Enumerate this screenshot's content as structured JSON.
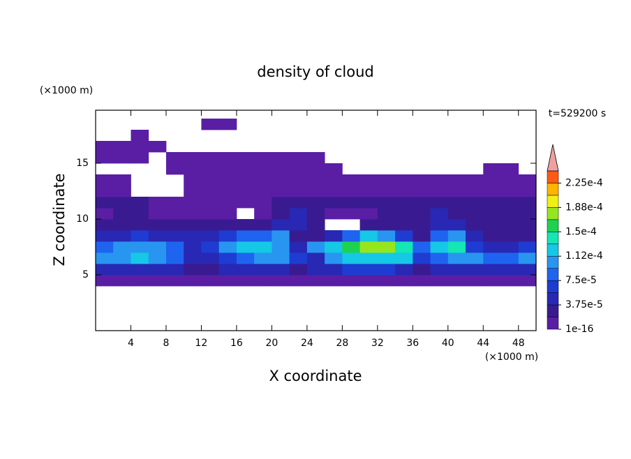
{
  "chart_data": {
    "type": "contour",
    "title": "density of cloud",
    "annotation": "t=529200 s",
    "x_label": "X coordinate",
    "y_label": "Z coordinate",
    "x_unit": "(×1000 m)",
    "y_unit": "(×1000 m)",
    "xlim": [
      0,
      50
    ],
    "ylim": [
      0,
      19.75
    ],
    "xticks": [
      4,
      8,
      12,
      16,
      20,
      24,
      28,
      32,
      36,
      40,
      44,
      48
    ],
    "yticks": [
      5,
      10,
      15
    ],
    "x": [
      1,
      3,
      5,
      7,
      9,
      11,
      13,
      15,
      17,
      19,
      21,
      23,
      25,
      27,
      29,
      31,
      33,
      35,
      37,
      39,
      41,
      43,
      45,
      47,
      49
    ],
    "y": [
      4.5,
      5.5,
      6.5,
      7.5,
      8.5,
      9.5,
      10.5,
      11.5,
      12.5,
      13.5,
      14.5,
      15.5,
      16.5,
      17.5,
      18.5
    ],
    "values": [
      [
        1e-05,
        1e-05,
        1e-05,
        1e-05,
        1e-05,
        1e-05,
        1e-05,
        1e-05,
        1e-05,
        1e-05,
        1e-05,
        1e-05,
        1e-05,
        1e-05,
        1e-05,
        1e-05,
        1e-05,
        1e-05,
        1e-05,
        1e-05,
        1e-05,
        1e-05,
        1e-05,
        1e-05,
        1e-05
      ],
      [
        4e-05,
        5e-05,
        5e-05,
        5e-05,
        4e-05,
        3e-05,
        3e-05,
        4e-05,
        4e-05,
        5e-05,
        4e-05,
        3e-05,
        4e-05,
        5e-05,
        6e-05,
        6e-05,
        6e-05,
        5e-05,
        3e-05,
        4e-05,
        5e-05,
        5e-05,
        5e-05,
        4e-05,
        4e-05
      ],
      [
        0.0001,
        0.00011,
        0.00012,
        0.00011,
        9e-05,
        5e-05,
        4e-05,
        6e-05,
        9e-05,
        0.0001,
        0.0001,
        6e-05,
        5e-05,
        0.0001,
        0.00012,
        0.00013,
        0.00013,
        0.00012,
        6e-05,
        9e-05,
        0.0001,
        0.0001,
        9e-05,
        8e-05,
        0.0001
      ],
      [
        9e-05,
        0.0001,
        0.00011,
        0.0001,
        8e-05,
        5e-05,
        6e-05,
        0.0001,
        0.00012,
        0.00013,
        0.00011,
        4e-05,
        0.00011,
        0.00013,
        0.00015,
        0.00017,
        0.00017,
        0.00014,
        8e-05,
        0.00012,
        0.00014,
        6e-05,
        5e-05,
        5e-05,
        6e-05
      ],
      [
        4e-05,
        5e-05,
        6e-05,
        5e-05,
        5e-05,
        4e-05,
        4e-05,
        6e-05,
        9e-05,
        8e-05,
        0.0001,
        3e-05,
        3e-05,
        5e-05,
        9e-05,
        0.00012,
        0.00011,
        6e-05,
        3e-05,
        9e-05,
        0.0001,
        4e-05,
        3e-05,
        3e-05,
        3e-05
      ],
      [
        2e-05,
        2.5e-05,
        2.5e-05,
        2e-05,
        2e-05,
        2e-05,
        2e-05,
        2.5e-05,
        3e-05,
        3e-05,
        4e-05,
        5e-05,
        3e-05,
        null,
        null,
        3e-05,
        3e-05,
        2.5e-05,
        3e-05,
        5e-05,
        4e-05,
        3e-05,
        2.5e-05,
        2e-05,
        2.5e-05
      ],
      [
        1.5e-05,
        2e-05,
        2e-05,
        1.5e-05,
        1.5e-05,
        1.5e-05,
        1e-05,
        1e-05,
        null,
        1.5e-05,
        3e-05,
        4e-05,
        2e-05,
        1e-05,
        1.5e-05,
        1.5e-05,
        2e-05,
        2e-05,
        3e-05,
        4e-05,
        3e-05,
        2e-05,
        2e-05,
        2e-05,
        2e-05
      ],
      [
        2e-05,
        2.5e-05,
        2e-05,
        1.5e-05,
        1e-05,
        1e-05,
        1e-05,
        1e-05,
        1e-05,
        1e-05,
        2.5e-05,
        3e-05,
        2.5e-05,
        2e-05,
        2e-05,
        2e-05,
        2e-05,
        2e-05,
        2e-05,
        2e-05,
        2e-05,
        2e-05,
        2.5e-05,
        2e-05,
        2e-05
      ],
      [
        1e-05,
        1e-05,
        null,
        null,
        null,
        1e-05,
        1e-05,
        1e-05,
        1e-05,
        1e-05,
        1e-05,
        1e-05,
        1e-05,
        1e-05,
        1e-05,
        1e-05,
        1e-05,
        1e-05,
        1e-05,
        1e-05,
        1.5e-05,
        1.5e-05,
        1.5e-05,
        1.5e-05,
        1.5e-05
      ],
      [
        1e-05,
        1e-05,
        null,
        null,
        null,
        1e-05,
        1e-05,
        1e-05,
        1e-05,
        1e-05,
        1e-05,
        1e-05,
        1e-05,
        1e-05,
        1e-05,
        1e-05,
        1e-05,
        1e-05,
        1e-05,
        1e-05,
        1e-05,
        1e-05,
        1e-05,
        1e-05,
        1e-05
      ],
      [
        null,
        null,
        null,
        null,
        1e-05,
        1e-05,
        1e-05,
        1e-05,
        1e-05,
        1e-05,
        1e-05,
        1e-05,
        1e-05,
        1e-05,
        null,
        null,
        null,
        null,
        null,
        null,
        null,
        null,
        1e-05,
        1e-05,
        null
      ],
      [
        1e-05,
        1e-05,
        1e-05,
        null,
        1e-05,
        1e-05,
        1e-05,
        1e-05,
        1e-05,
        1e-05,
        1e-05,
        1e-05,
        1e-05,
        null,
        null,
        null,
        null,
        null,
        null,
        null,
        null,
        null,
        null,
        null,
        null
      ],
      [
        1e-05,
        1e-05,
        1e-05,
        1e-05,
        null,
        null,
        null,
        null,
        null,
        null,
        null,
        null,
        null,
        null,
        null,
        null,
        null,
        null,
        null,
        null,
        null,
        null,
        null,
        null,
        null
      ],
      [
        null,
        null,
        1e-05,
        null,
        null,
        null,
        null,
        null,
        null,
        null,
        null,
        null,
        null,
        null,
        null,
        null,
        null,
        null,
        null,
        null,
        null,
        null,
        null,
        null,
        null
      ],
      [
        null,
        null,
        null,
        null,
        null,
        null,
        1e-05,
        1e-05,
        null,
        null,
        null,
        null,
        null,
        null,
        null,
        null,
        null,
        null,
        null,
        null,
        null,
        null,
        null,
        null,
        null
      ]
    ],
    "colorbar": {
      "levels": [
        1e-16,
        1.875e-05,
        3.75e-05,
        5.625e-05,
        7.5e-05,
        9.375e-05,
        0.0001125,
        0.00013125,
        0.00015,
        0.00016875,
        0.0001875,
        0.00020625,
        0.000225,
        0.00024375
      ],
      "colors": [
        "#5a1ea5",
        "#3a1a90",
        "#2828b4",
        "#1e3cd2",
        "#1e64f0",
        "#2896f0",
        "#14c8e6",
        "#14e6b4",
        "#1ed250",
        "#96e61e",
        "#f0f014",
        "#ffb400",
        "#ff5a14"
      ],
      "extend_color": "#f0a0a0",
      "ticks": [
        {
          "value": 1e-16,
          "label": "1e-16"
        },
        {
          "value": 3.75e-05,
          "label": "3.75e-5"
        },
        {
          "value": 7.5e-05,
          "label": "7.5e-5"
        },
        {
          "value": 0.0001125,
          "label": "1.12e-4"
        },
        {
          "value": 0.00015,
          "label": "1.5e-4"
        },
        {
          "value": 0.0001875,
          "label": "1.88e-4"
        },
        {
          "value": 0.000225,
          "label": "2.25e-4"
        }
      ]
    }
  }
}
